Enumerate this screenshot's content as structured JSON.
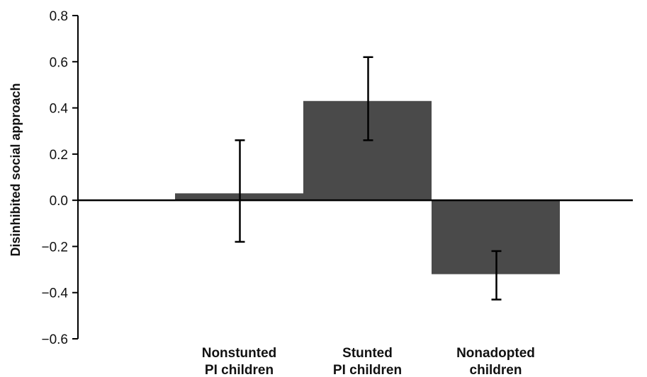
{
  "chart_data": {
    "type": "bar",
    "title": "",
    "xlabel": "",
    "ylabel": "Disinhibited social approach",
    "ylim": [
      -0.6,
      0.8
    ],
    "yticks": [
      0.8,
      0.6,
      0.4,
      0.2,
      0.0,
      -0.2,
      -0.4,
      -0.6
    ],
    "ytick_labels": [
      "0.8",
      "0.6",
      "0.4",
      "0.2",
      "0.0",
      "−0.2",
      "−0.4",
      "−0.6"
    ],
    "categories": [
      [
        "Nonstunted",
        "PI children"
      ],
      [
        "Stunted",
        "PI children"
      ],
      [
        "Nonadopted",
        "children"
      ]
    ],
    "values": [
      0.03,
      0.43,
      -0.32
    ],
    "error_low": [
      -0.18,
      0.26,
      -0.43
    ],
    "error_high": [
      0.26,
      0.62,
      -0.22
    ],
    "bar_color": "#4a4a4a",
    "grid": false
  }
}
